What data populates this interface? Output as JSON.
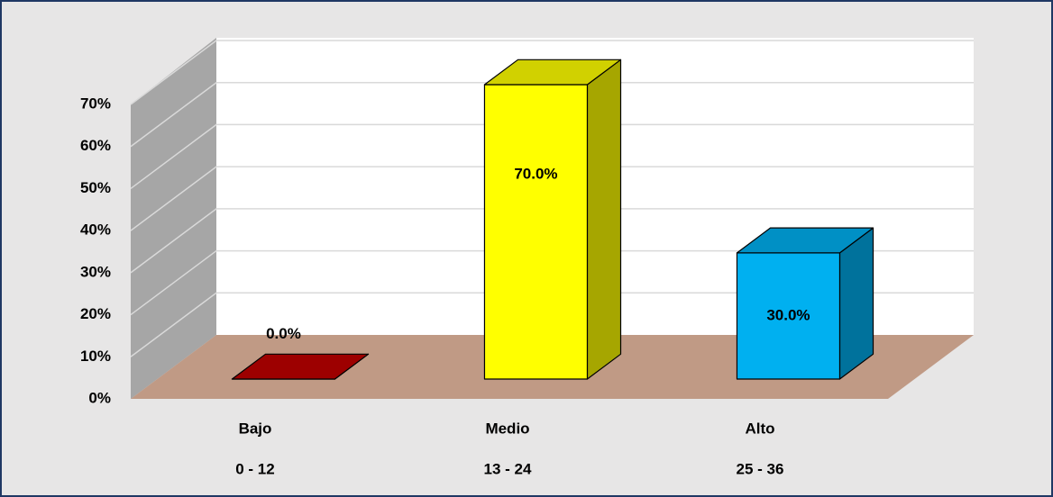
{
  "chart_data": {
    "type": "bar3d",
    "categories": [
      "Bajo",
      "Medio",
      "Alto"
    ],
    "ranges": [
      "0 - 12",
      "13 - 24",
      "25 - 36"
    ],
    "values": [
      0,
      70,
      30
    ],
    "value_labels": [
      "0.0%",
      "70.0%",
      "30.0%"
    ],
    "colors": [
      "#c00000",
      "#ffff00",
      "#00b0f0"
    ],
    "ylim": [
      0,
      70
    ],
    "yticks": [
      {
        "value": 0,
        "label": "0%"
      },
      {
        "value": 10,
        "label": "10%"
      },
      {
        "value": 20,
        "label": "20%"
      },
      {
        "value": 30,
        "label": "30%"
      },
      {
        "value": 40,
        "label": "40%"
      },
      {
        "value": 50,
        "label": "50%"
      },
      {
        "value": 60,
        "label": "60%"
      },
      {
        "value": 70,
        "label": "70%"
      }
    ],
    "grid": true
  }
}
